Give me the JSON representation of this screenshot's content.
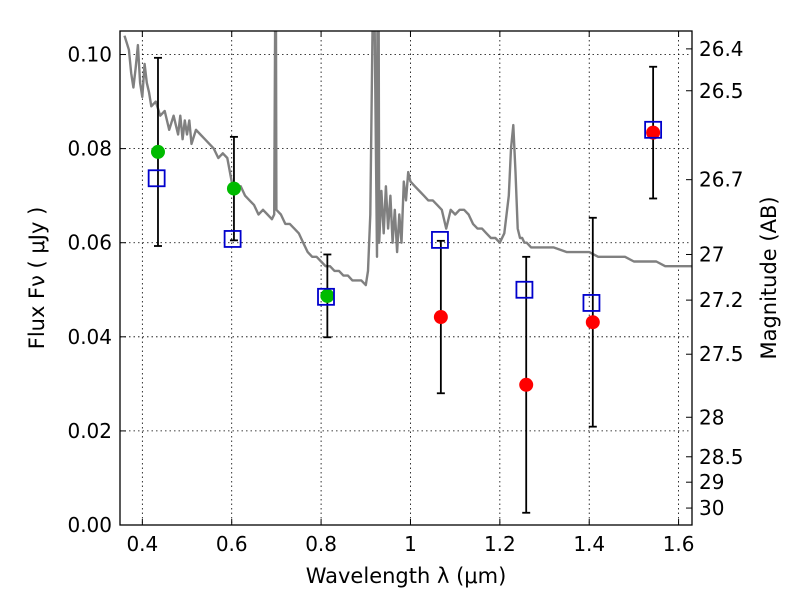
{
  "chart_data": {
    "type": "scatter",
    "xlabel": "Wavelength  λ (μm)",
    "ylabel": "Flux  Fν  ( μJy )",
    "ylabel_right": "Magnitude (AB)",
    "xlim": [
      0.35,
      1.63
    ],
    "ylim": [
      0.0,
      0.105
    ],
    "grid": true,
    "x_ticks": [
      "0.4",
      "0.6",
      "0.8",
      "1",
      "1.2",
      "1.4",
      "1.6"
    ],
    "y_ticks": [
      "0.00",
      "0.02",
      "0.04",
      "0.06",
      "0.08",
      "0.10"
    ],
    "right_ticks": [
      {
        "label": "26.4",
        "flux": 0.1012
      },
      {
        "label": "26.5",
        "flux": 0.0923
      },
      {
        "label": "26.7",
        "flux": 0.0734
      },
      {
        "label": "27",
        "flux": 0.0575
      },
      {
        "label": "27.2",
        "flux": 0.0478
      },
      {
        "label": "27.5",
        "flux": 0.0363
      },
      {
        "label": "28",
        "flux": 0.0229
      },
      {
        "label": "28.5",
        "flux": 0.0145
      },
      {
        "label": "29",
        "flux": 0.0091
      },
      {
        "label": "30",
        "flux": 0.0036
      }
    ],
    "colors": {
      "model": "#808080",
      "green": "#00bb00",
      "red": "#ff0000",
      "box": "#0000cc",
      "errorbar": "#000000"
    },
    "model_spectrum": {
      "x": [
        0.36,
        0.37,
        0.375,
        0.38,
        0.385,
        0.39,
        0.395,
        0.4,
        0.405,
        0.41,
        0.415,
        0.42,
        0.43,
        0.44,
        0.45,
        0.46,
        0.47,
        0.48,
        0.485,
        0.49,
        0.495,
        0.5,
        0.505,
        0.51,
        0.52,
        0.53,
        0.54,
        0.55,
        0.56,
        0.57,
        0.58,
        0.59,
        0.6,
        0.61,
        0.62,
        0.63,
        0.64,
        0.65,
        0.66,
        0.67,
        0.68,
        0.69,
        0.695,
        0.697,
        0.699,
        0.7,
        0.71,
        0.72,
        0.73,
        0.74,
        0.75,
        0.76,
        0.77,
        0.78,
        0.79,
        0.8,
        0.81,
        0.82,
        0.83,
        0.84,
        0.85,
        0.86,
        0.87,
        0.88,
        0.89,
        0.9,
        0.905,
        0.91,
        0.915,
        0.92,
        0.925,
        0.926,
        0.927,
        0.928,
        0.929,
        0.93,
        0.935,
        0.94,
        0.945,
        0.95,
        0.955,
        0.96,
        0.965,
        0.97,
        0.975,
        0.98,
        0.985,
        0.99,
        0.995,
        1.0,
        1.01,
        1.02,
        1.03,
        1.04,
        1.05,
        1.06,
        1.07,
        1.08,
        1.09,
        1.1,
        1.11,
        1.12,
        1.13,
        1.14,
        1.15,
        1.16,
        1.17,
        1.18,
        1.19,
        1.2,
        1.21,
        1.22,
        1.225,
        1.23,
        1.235,
        1.24,
        1.245,
        1.25,
        1.255,
        1.26,
        1.27,
        1.28,
        1.29,
        1.3,
        1.32,
        1.35,
        1.38,
        1.4,
        1.42,
        1.45,
        1.48,
        1.5,
        1.52,
        1.55,
        1.57,
        1.6,
        1.63
      ],
      "y": [
        0.104,
        0.101,
        0.096,
        0.093,
        0.097,
        0.102,
        0.094,
        0.091,
        0.098,
        0.094,
        0.092,
        0.089,
        0.09,
        0.087,
        0.088,
        0.084,
        0.087,
        0.083,
        0.087,
        0.082,
        0.086,
        0.083,
        0.086,
        0.081,
        0.084,
        0.083,
        0.082,
        0.081,
        0.08,
        0.078,
        0.079,
        0.078,
        0.073,
        0.071,
        0.072,
        0.07,
        0.069,
        0.068,
        0.066,
        0.067,
        0.066,
        0.065,
        0.066,
        0.105,
        0.105,
        0.067,
        0.066,
        0.064,
        0.064,
        0.063,
        0.062,
        0.06,
        0.058,
        0.057,
        0.057,
        0.056,
        0.055,
        0.055,
        0.054,
        0.054,
        0.053,
        0.053,
        0.052,
        0.052,
        0.052,
        0.051,
        0.054,
        0.066,
        0.105,
        0.105,
        0.057,
        0.105,
        0.105,
        0.06,
        0.105,
        0.06,
        0.071,
        0.062,
        0.072,
        0.063,
        0.07,
        0.06,
        0.067,
        0.058,
        0.066,
        0.06,
        0.073,
        0.069,
        0.075,
        0.073,
        0.072,
        0.071,
        0.07,
        0.069,
        0.069,
        0.068,
        0.067,
        0.063,
        0.067,
        0.066,
        0.067,
        0.067,
        0.066,
        0.064,
        0.063,
        0.063,
        0.062,
        0.061,
        0.061,
        0.06,
        0.062,
        0.07,
        0.08,
        0.085,
        0.075,
        0.063,
        0.061,
        0.061,
        0.06,
        0.06,
        0.059,
        0.059,
        0.059,
        0.059,
        0.059,
        0.058,
        0.058,
        0.058,
        0.057,
        0.057,
        0.057,
        0.056,
        0.056,
        0.056,
        0.055,
        0.055,
        0.055
      ]
    },
    "observed_points": [
      {
        "x": 0.435,
        "y": 0.0793,
        "err": 0.02,
        "color": "green"
      },
      {
        "x": 0.605,
        "y": 0.0715,
        "err": 0.011,
        "color": "green"
      },
      {
        "x": 0.814,
        "y": 0.0487,
        "err": 0.0088,
        "color": "green"
      },
      {
        "x": 1.068,
        "y": 0.0442,
        "err": 0.0162,
        "color": "red"
      },
      {
        "x": 1.259,
        "y": 0.0298,
        "err": 0.0272,
        "color": "red"
      },
      {
        "x": 1.408,
        "y": 0.0431,
        "err": 0.0222,
        "color": "red"
      },
      {
        "x": 1.543,
        "y": 0.0834,
        "err": 0.014,
        "color": "red"
      }
    ],
    "model_points": [
      {
        "x": 0.432,
        "y": 0.0737
      },
      {
        "x": 0.602,
        "y": 0.0608
      },
      {
        "x": 0.811,
        "y": 0.0485
      },
      {
        "x": 1.066,
        "y": 0.0606
      },
      {
        "x": 1.255,
        "y": 0.05
      },
      {
        "x": 1.405,
        "y": 0.0472
      },
      {
        "x": 1.543,
        "y": 0.084
      }
    ]
  }
}
